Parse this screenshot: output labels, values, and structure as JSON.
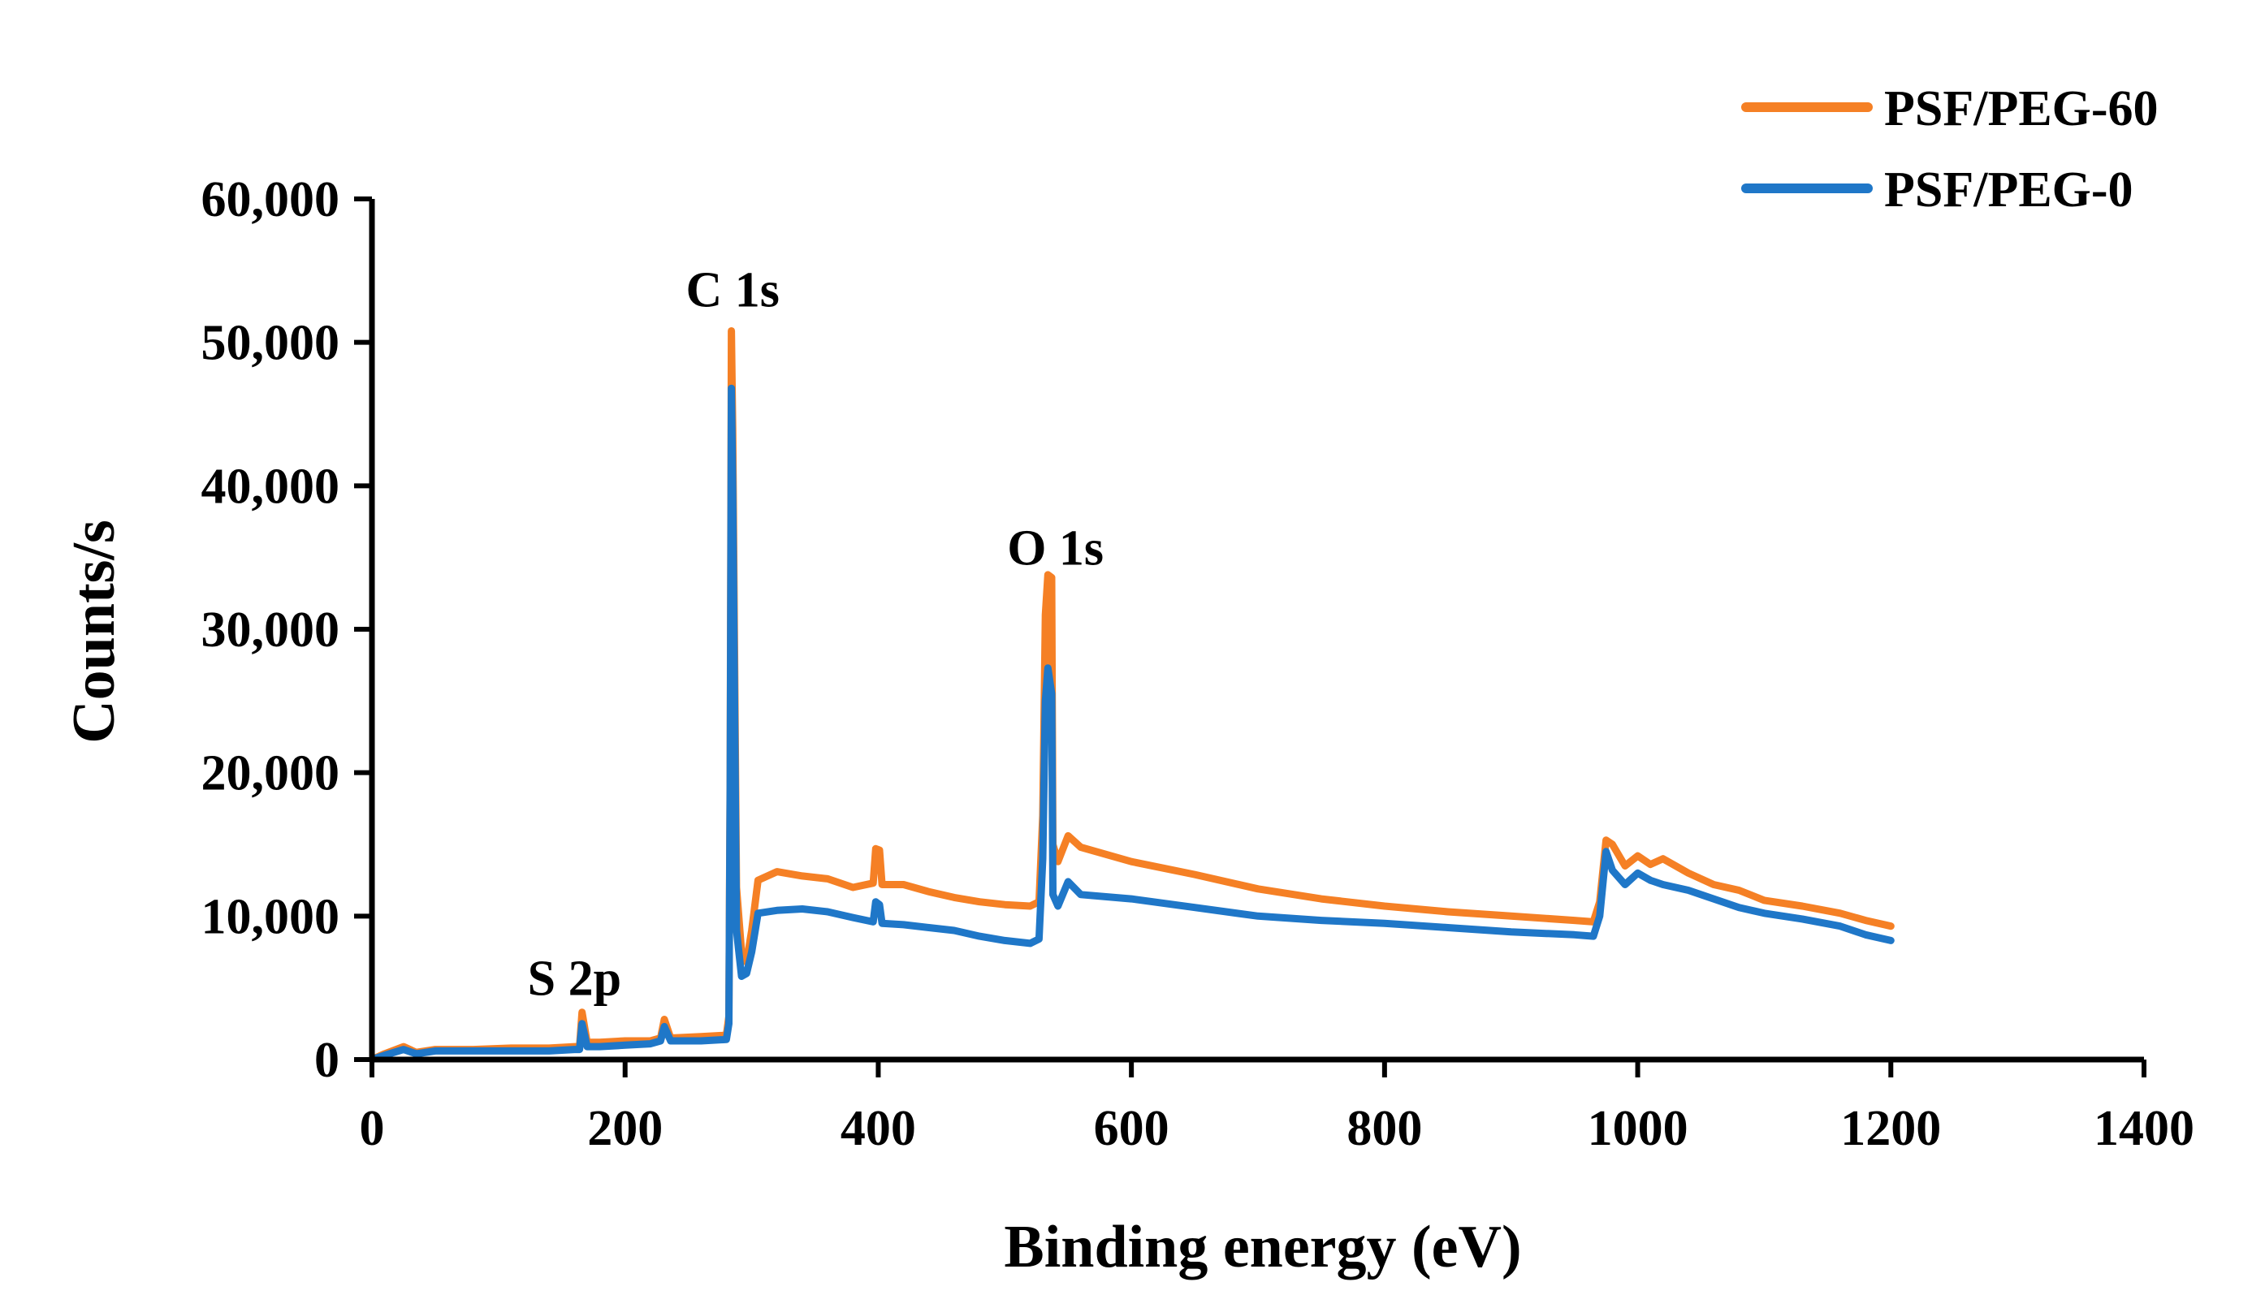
{
  "chart_data": {
    "type": "line",
    "title": "",
    "xlabel": "Binding energy (eV)",
    "ylabel": "Counts/s",
    "xlim": [
      0,
      1400
    ],
    "ylim": [
      0,
      60000
    ],
    "x_ticks": [
      "0",
      "200",
      "400",
      "600",
      "800",
      "1000",
      "1200",
      "1400"
    ],
    "y_ticks": [
      "0",
      "10,000",
      "20,000",
      "30,000",
      "40,000",
      "50,000",
      "60,000"
    ],
    "legend_position": "top-right",
    "annotations": [
      {
        "text": "S 2p",
        "x": 160,
        "y": 4500
      },
      {
        "text": "C 1s",
        "x": 285,
        "y": 52500
      },
      {
        "text": "O 1s",
        "x": 540,
        "y": 34500
      }
    ],
    "series": [
      {
        "name": "PSF/PEG-60",
        "color": "#f58025",
        "points": [
          [
            0,
            0
          ],
          [
            10,
            400
          ],
          [
            25,
            900
          ],
          [
            35,
            500
          ],
          [
            50,
            700
          ],
          [
            80,
            700
          ],
          [
            110,
            800
          ],
          [
            140,
            800
          ],
          [
            160,
            900
          ],
          [
            164,
            900
          ],
          [
            166,
            3300
          ],
          [
            170,
            1200
          ],
          [
            180,
            1200
          ],
          [
            200,
            1300
          ],
          [
            220,
            1300
          ],
          [
            228,
            1500
          ],
          [
            231,
            2800
          ],
          [
            236,
            1500
          ],
          [
            260,
            1600
          ],
          [
            280,
            1700
          ],
          [
            282,
            3000
          ],
          [
            283,
            20000
          ],
          [
            284,
            50800
          ],
          [
            285,
            44000
          ],
          [
            288,
            12000
          ],
          [
            292,
            7500
          ],
          [
            296,
            6800
          ],
          [
            300,
            9000
          ],
          [
            305,
            12500
          ],
          [
            320,
            13100
          ],
          [
            340,
            12800
          ],
          [
            360,
            12600
          ],
          [
            380,
            12000
          ],
          [
            396,
            12300
          ],
          [
            398,
            14700
          ],
          [
            401,
            14600
          ],
          [
            403,
            12200
          ],
          [
            420,
            12200
          ],
          [
            440,
            11700
          ],
          [
            460,
            11300
          ],
          [
            480,
            11000
          ],
          [
            500,
            10800
          ],
          [
            520,
            10700
          ],
          [
            527,
            11000
          ],
          [
            530,
            17000
          ],
          [
            532,
            31000
          ],
          [
            534,
            33800
          ],
          [
            537,
            33600
          ],
          [
            538,
            15000
          ],
          [
            542,
            13800
          ],
          [
            550,
            15600
          ],
          [
            560,
            14800
          ],
          [
            600,
            13800
          ],
          [
            650,
            12900
          ],
          [
            700,
            11900
          ],
          [
            750,
            11200
          ],
          [
            800,
            10700
          ],
          [
            850,
            10300
          ],
          [
            900,
            10000
          ],
          [
            950,
            9700
          ],
          [
            965,
            9600
          ],
          [
            970,
            11000
          ],
          [
            975,
            15300
          ],
          [
            980,
            15000
          ],
          [
            990,
            13500
          ],
          [
            1000,
            14200
          ],
          [
            1010,
            13600
          ],
          [
            1020,
            14000
          ],
          [
            1040,
            13000
          ],
          [
            1060,
            12200
          ],
          [
            1080,
            11800
          ],
          [
            1100,
            11100
          ],
          [
            1130,
            10700
          ],
          [
            1160,
            10200
          ],
          [
            1180,
            9700
          ],
          [
            1200,
            9300
          ]
        ]
      },
      {
        "name": "PSF/PEG-0",
        "color": "#1f77c8",
        "points": [
          [
            0,
            0
          ],
          [
            10,
            300
          ],
          [
            25,
            700
          ],
          [
            35,
            400
          ],
          [
            50,
            600
          ],
          [
            80,
            600
          ],
          [
            110,
            600
          ],
          [
            140,
            600
          ],
          [
            160,
            700
          ],
          [
            164,
            700
          ],
          [
            166,
            2500
          ],
          [
            170,
            900
          ],
          [
            180,
            900
          ],
          [
            200,
            1000
          ],
          [
            220,
            1100
          ],
          [
            228,
            1300
          ],
          [
            231,
            2300
          ],
          [
            236,
            1300
          ],
          [
            260,
            1300
          ],
          [
            280,
            1400
          ],
          [
            282,
            2500
          ],
          [
            283,
            19000
          ],
          [
            284,
            46800
          ],
          [
            285,
            40000
          ],
          [
            288,
            9000
          ],
          [
            292,
            5800
          ],
          [
            296,
            6000
          ],
          [
            300,
            7500
          ],
          [
            305,
            10200
          ],
          [
            320,
            10400
          ],
          [
            340,
            10500
          ],
          [
            360,
            10300
          ],
          [
            380,
            9900
          ],
          [
            396,
            9600
          ],
          [
            398,
            11000
          ],
          [
            401,
            10800
          ],
          [
            403,
            9500
          ],
          [
            420,
            9400
          ],
          [
            440,
            9200
          ],
          [
            460,
            9000
          ],
          [
            480,
            8600
          ],
          [
            500,
            8300
          ],
          [
            520,
            8100
          ],
          [
            527,
            8400
          ],
          [
            530,
            14000
          ],
          [
            532,
            25000
          ],
          [
            534,
            27300
          ],
          [
            537,
            25500
          ],
          [
            538,
            11500
          ],
          [
            542,
            10700
          ],
          [
            550,
            12400
          ],
          [
            560,
            11500
          ],
          [
            600,
            11200
          ],
          [
            650,
            10600
          ],
          [
            700,
            10000
          ],
          [
            750,
            9700
          ],
          [
            800,
            9500
          ],
          [
            850,
            9200
          ],
          [
            900,
            8900
          ],
          [
            950,
            8700
          ],
          [
            965,
            8600
          ],
          [
            970,
            10000
          ],
          [
            975,
            14500
          ],
          [
            980,
            13200
          ],
          [
            990,
            12200
          ],
          [
            1000,
            13000
          ],
          [
            1010,
            12500
          ],
          [
            1020,
            12200
          ],
          [
            1040,
            11800
          ],
          [
            1060,
            11200
          ],
          [
            1080,
            10600
          ],
          [
            1100,
            10200
          ],
          [
            1130,
            9800
          ],
          [
            1160,
            9300
          ],
          [
            1180,
            8700
          ],
          [
            1200,
            8300
          ]
        ]
      }
    ]
  }
}
